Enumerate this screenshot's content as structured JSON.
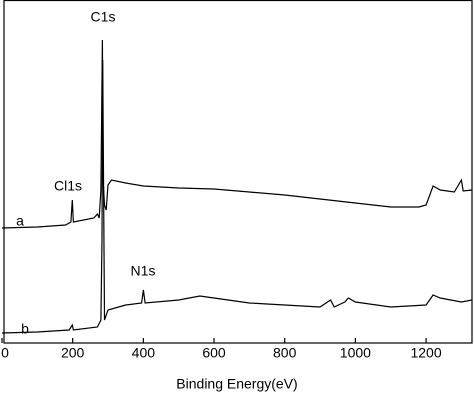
{
  "chart_data": {
    "type": "line",
    "x_label": "Binding Energy(eV)",
    "xlim": [
      0,
      1330
    ],
    "xticks": [
      0,
      200,
      400,
      600,
      800,
      1000,
      1200
    ],
    "ylim": [
      0,
      343
    ],
    "annotations": [
      "C1s",
      "Cl1s",
      "N1s",
      "a",
      "b"
    ],
    "series": [
      {
        "name": "a",
        "color": "#000000",
        "x": [
          0,
          100,
          180,
          195,
          199,
          202,
          260,
          270,
          275,
          280,
          284,
          286,
          290,
          295,
          300,
          310,
          350,
          400,
          500,
          600,
          700,
          800,
          900,
          1000,
          1100,
          1180,
          1200,
          1220,
          1240,
          1280,
          1300,
          1305,
          1330
        ],
        "values": [
          115,
          116,
          118,
          121,
          143,
          121,
          125,
          129,
          125,
          153,
          303,
          163,
          138,
          133,
          158,
          163,
          160,
          157,
          155,
          154,
          151,
          148,
          144,
          140,
          136,
          136,
          138,
          157,
          153,
          151,
          163,
          152,
          153
        ]
      },
      {
        "name": "b",
        "color": "#000000",
        "x": [
          0,
          100,
          190,
          199,
          202,
          270,
          280,
          283,
          285,
          290,
          300,
          350,
          395,
          400,
          405,
          500,
          530,
          560,
          600,
          700,
          800,
          900,
          930,
          940,
          970,
          980,
          1000,
          1100,
          1200,
          1220,
          1240,
          1300,
          1330
        ],
        "values": [
          10,
          11,
          13,
          18,
          13,
          16,
          23,
          103,
          283,
          23,
          33,
          38,
          40,
          53,
          40,
          43,
          45,
          47,
          45,
          40,
          38,
          36,
          43,
          36,
          41,
          45,
          41,
          36,
          38,
          48,
          45,
          41,
          43
        ]
      }
    ]
  }
}
